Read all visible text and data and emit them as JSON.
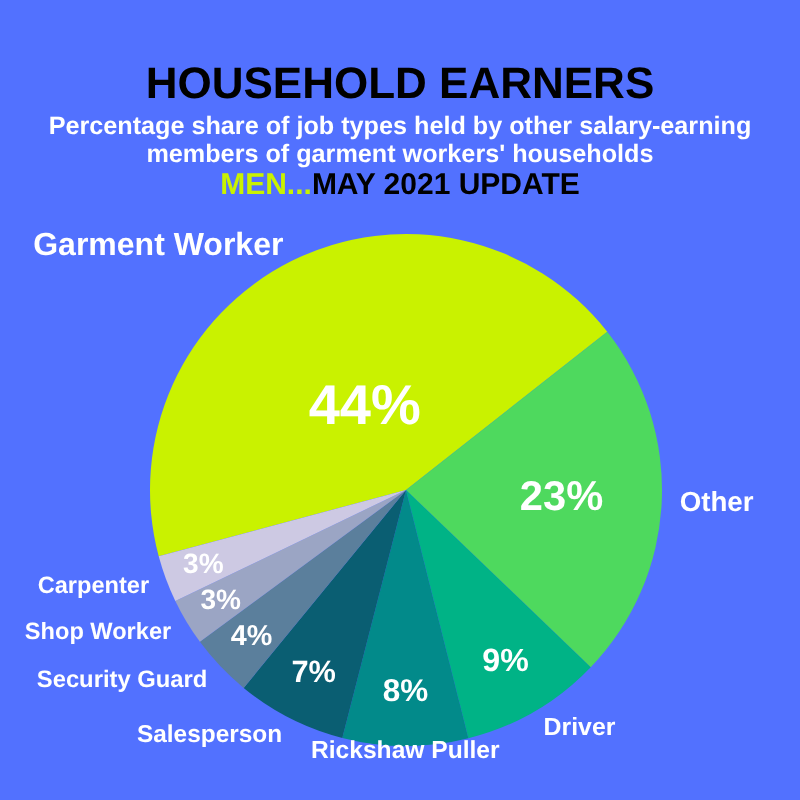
{
  "chart_data": {
    "type": "pie",
    "title": "HOUSEHOLD EARNERS",
    "subtitle": "Percentage share of job types held by other salary-earning members of garment workers' households",
    "annotations": [
      "MEN...",
      "MAY 2021 UPDATE"
    ],
    "categories": [
      "Garment Worker",
      "Other",
      "Driver",
      "Rickshaw Puller",
      "Salesperson",
      "Security Guard",
      "Shop Worker",
      "Carpenter"
    ],
    "values": [
      44,
      23,
      9,
      8,
      7,
      4,
      3,
      3
    ],
    "value_labels": [
      "44%",
      "23%",
      "9%",
      "8%",
      "7%",
      "4%",
      "3%",
      "3%"
    ],
    "colors": [
      "#c9f200",
      "#4ed95e",
      "#00b386",
      "#028a8a",
      "#0a5e72",
      "#5b7f9c",
      "#9ba5c4",
      "#cdc9e3"
    ]
  }
}
